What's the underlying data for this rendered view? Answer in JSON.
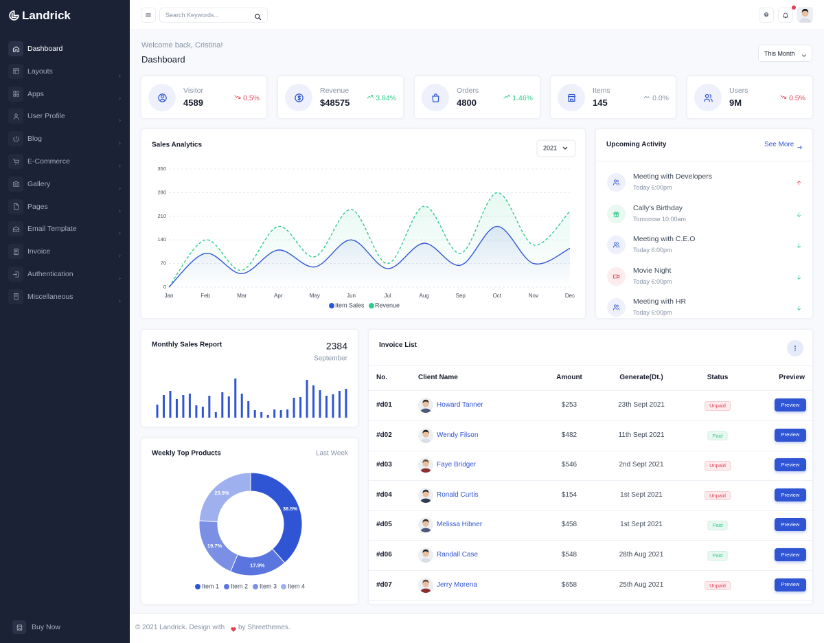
{
  "brand": "Landrick",
  "sidebar": {
    "menu": [
      "Dashboard",
      "Layouts",
      "Apps",
      "User Profile",
      "Blog",
      "E-Commerce",
      "Gallery",
      "Pages",
      "Email Template",
      "Invoice",
      "Authentication",
      "Miscellaneous"
    ],
    "buy_now": "Buy Now"
  },
  "topbar": {
    "search_placeholder": "Search Keywords..."
  },
  "welcome": "Welcome back, Cristina!",
  "page_title": "Dashboard",
  "period": "This Month",
  "stats": [
    {
      "label": "Visitor",
      "value": "4589",
      "change": "0.5%",
      "trend": "down",
      "icon": "visitor"
    },
    {
      "label": "Revenue",
      "value": "$48575",
      "change": "3.84%",
      "trend": "up",
      "icon": "dollar"
    },
    {
      "label": "Orders",
      "value": "4800",
      "change": "1.46%",
      "trend": "up",
      "icon": "bag"
    },
    {
      "label": "Items",
      "value": "145",
      "change": "0.0%",
      "trend": "flat",
      "icon": "store"
    },
    {
      "label": "Users",
      "value": "9M",
      "change": "0.5%",
      "trend": "down",
      "icon": "users"
    }
  ],
  "activity": {
    "title": "Upcoming Activity",
    "see_more": "See More",
    "items": [
      {
        "title": "Meeting with Developers",
        "time": "Today 6:00pm",
        "icon": "users",
        "trend": "up"
      },
      {
        "title": "Cally's Birthday",
        "time": "Tomorrow 10:00am",
        "icon": "gift",
        "trend": "down"
      },
      {
        "title": "Meeting with C.E.O",
        "time": "Today 6:00pm",
        "icon": "users",
        "trend": "down"
      },
      {
        "title": "Movie Night",
        "time": "Today 6:00pm",
        "icon": "video",
        "trend": "down"
      },
      {
        "title": "Meeting with HR",
        "time": "Today 6:00pm",
        "icon": "users",
        "trend": "down"
      }
    ]
  },
  "invoice": {
    "title": "Invoice List",
    "columns": [
      "No.",
      "Client Name",
      "Amount",
      "Generate(Dt.)",
      "Status",
      "Preview"
    ],
    "rows": [
      {
        "no": "#d01",
        "client": "Howard Tanner",
        "amount": "$253",
        "date": "23th Sept 2021",
        "status": "Unpaid",
        "paid": false,
        "action": "Preview"
      },
      {
        "no": "#d02",
        "client": "Wendy Filson",
        "amount": "$482",
        "date": "11th Sept 2021",
        "status": "Paid",
        "paid": true,
        "action": "Preview"
      },
      {
        "no": "#d03",
        "client": "Faye Bridger",
        "amount": "$546",
        "date": "2nd Sept 2021",
        "status": "Unpaid",
        "paid": false,
        "action": "Preview"
      },
      {
        "no": "#d04",
        "client": "Ronald Curtis",
        "amount": "$154",
        "date": "1st Sept 2021",
        "status": "Unpaid",
        "paid": false,
        "action": "Preview"
      },
      {
        "no": "#d05",
        "client": "Melissa Hibner",
        "amount": "$458",
        "date": "1st Sept 2021",
        "status": "Paid",
        "paid": true,
        "action": "Preview"
      },
      {
        "no": "#d06",
        "client": "Randall Case",
        "amount": "$548",
        "date": "28th Aug 2021",
        "status": "Paid",
        "paid": true,
        "action": "Preview"
      },
      {
        "no": "#d07",
        "client": "Jerry Morena",
        "amount": "$658",
        "date": "25th Aug 2021",
        "status": "Unpaid",
        "paid": false,
        "action": "Preview"
      }
    ]
  },
  "footer": {
    "text": "© 2021 Landrick. Design with",
    "by": "by Shreethemes."
  },
  "chart_data": [
    {
      "type": "line",
      "title": "Sales Analytics",
      "year": "2021",
      "categories": [
        "Jan",
        "Feb",
        "Mar",
        "Apr",
        "May",
        "Jun",
        "Jul",
        "Aug",
        "Sep",
        "Oct",
        "Nov",
        "Dec"
      ],
      "series": [
        {
          "name": "Item Sales",
          "color": "#2f55d4",
          "values": [
            0,
            100,
            40,
            110,
            60,
            140,
            55,
            130,
            65,
            180,
            70,
            115
          ]
        },
        {
          "name": "Revenue",
          "color": "#2eca8b",
          "values": [
            0,
            140,
            50,
            180,
            90,
            230,
            70,
            240,
            100,
            280,
            125,
            225
          ]
        }
      ],
      "ylim": [
        0,
        350
      ],
      "yticks": [
        0,
        70,
        140,
        210,
        280,
        350
      ],
      "grid": true
    },
    {
      "type": "bar",
      "title": "Monthly Sales Report",
      "total": "2384",
      "subtitle": "September",
      "color": "#2f55d4",
      "values": [
        19,
        33,
        39,
        27,
        33,
        35,
        18,
        16,
        32,
        8,
        37,
        31,
        57,
        35,
        24,
        11,
        8,
        4,
        12,
        11,
        12,
        29,
        30,
        55,
        47,
        40,
        32,
        34,
        39,
        42
      ],
      "ylim": [
        0,
        60
      ]
    },
    {
      "type": "pie",
      "title": "Weekly Top Products",
      "subtitle": "Last Week",
      "categories": [
        "Item 1",
        "Item 2",
        "Item 3",
        "Item 4"
      ],
      "values": [
        38.5,
        17.9,
        19.7,
        23.9
      ],
      "value_labels": [
        "38.5%",
        "17.9%",
        "19.7%",
        "23.9%"
      ],
      "colors": [
        "#2f55d4",
        "#5a75de",
        "#7b90e5",
        "#9fb0ee"
      ]
    }
  ]
}
